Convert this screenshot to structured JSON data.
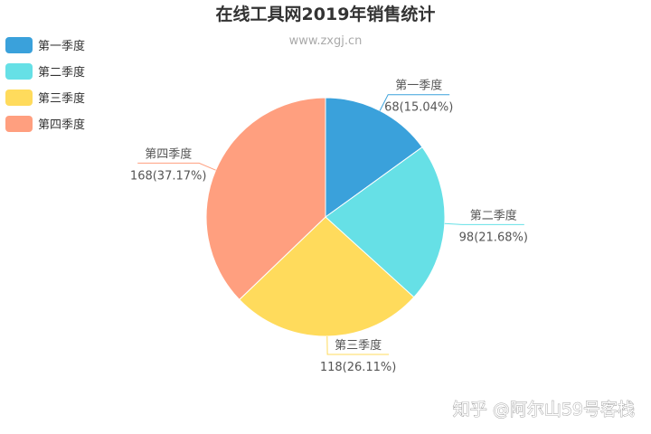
{
  "chart_data": {
    "type": "pie",
    "title": "在线工具网2019年销售统计",
    "subtitle": "www.zxgj.cn",
    "categories": [
      "第一季度",
      "第二季度",
      "第三季度",
      "第四季度"
    ],
    "values": [
      68,
      98,
      118,
      168
    ],
    "value_labels": [
      "68(15.04%)",
      "98(21.68%)",
      "118(26.11%)",
      "168(37.17%)"
    ],
    "colors": [
      "#3aa1db",
      "#66e0e6",
      "#ffdb5c",
      "#ff9f7f"
    ],
    "legend_position": "top-left",
    "start_angle": "top, clockwise"
  },
  "watermark": "知乎 @阿尔山59号客栈"
}
